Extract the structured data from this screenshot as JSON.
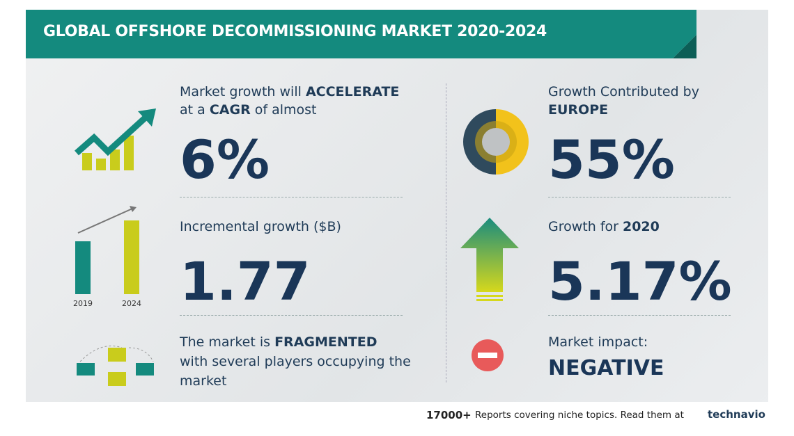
{
  "header": {
    "title": "GLOBAL OFFSHORE DECOMMISSIONING MARKET 2020-2024"
  },
  "cards": [
    {
      "text": [
        "Market growth will",
        "ACCELERATE",
        "at a",
        "CAGR",
        "of almost"
      ],
      "value": "6%"
    },
    {
      "text": [
        "Incremental growth ($B)"
      ],
      "value": "1.77",
      "icon_labels": [
        "2019",
        "2024"
      ]
    },
    {
      "text": [
        "The market is",
        "FRAGMENTED",
        "with several players occupying the",
        "market"
      ]
    },
    {
      "text": [
        "Growth Contributed by",
        "EUROPE"
      ],
      "value": "55%"
    },
    {
      "text": [
        "Growth for",
        "2020"
      ],
      "value": "5.17%"
    },
    {
      "text": [
        "Market impact:",
        "NEGATIVE"
      ]
    }
  ],
  "footer": {
    "count": "17000+",
    "text": "Reports covering niche topics. Read them at",
    "brand": "technavio"
  }
}
